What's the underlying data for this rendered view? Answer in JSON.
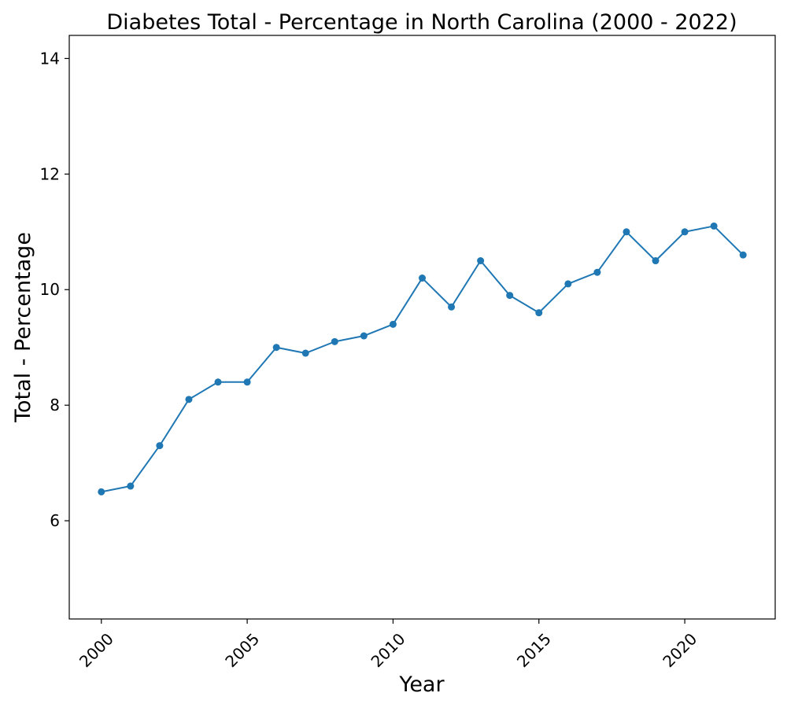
{
  "chart_data": {
    "type": "line",
    "title": "Diabetes Total - Percentage in North Carolina (2000 - 2022)",
    "xlabel": "Year",
    "ylabel": "Total - Percentage",
    "x": [
      2000,
      2001,
      2002,
      2003,
      2004,
      2005,
      2006,
      2007,
      2008,
      2009,
      2010,
      2011,
      2012,
      2013,
      2014,
      2015,
      2016,
      2017,
      2018,
      2019,
      2020,
      2021,
      2022
    ],
    "series": [
      {
        "values": [
          6.5,
          6.6,
          7.3,
          8.1,
          8.4,
          8.4,
          9.0,
          8.9,
          9.1,
          9.2,
          9.4,
          10.2,
          9.7,
          10.5,
          9.9,
          9.6,
          10.1,
          10.3,
          11.0,
          10.5,
          11.0,
          11.1,
          10.6
        ]
      }
    ],
    "xlim": [
      1998.9,
      2023.1
    ],
    "ylim": [
      4.3,
      14.4
    ],
    "xticks": [
      "2000",
      "2005",
      "2010",
      "2015",
      "2020"
    ],
    "yticks": [
      "6",
      "8",
      "10",
      "12",
      "14"
    ],
    "grid": false,
    "legend": "none",
    "color": "#1f77b4"
  }
}
